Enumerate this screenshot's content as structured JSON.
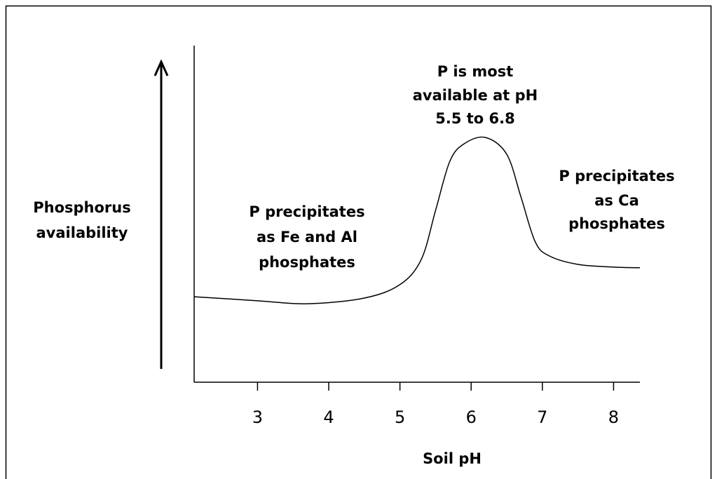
{
  "chart_data": {
    "type": "line",
    "x_label": "Soil pH",
    "y_label": [
      "Phosphorus",
      "availability"
    ],
    "annotations": [
      {
        "lines": [
          "P precipitates",
          "as Fe and Al",
          "phosphates"
        ]
      },
      {
        "lines": [
          "P is most",
          "available at pH",
          "5.5 to 6.8"
        ]
      },
      {
        "lines": [
          "P precipitates",
          "as Ca",
          "phosphates"
        ]
      }
    ],
    "x": [
      2.11,
      3.0,
      3.7,
      4.5,
      5.0,
      5.3,
      5.5,
      5.7,
      5.9,
      6.2,
      6.5,
      6.7,
      6.9,
      7.1,
      7.5,
      8.0,
      8.37
    ],
    "series": [
      {
        "color": "#000000",
        "values": [
          25.4,
          24.2,
          23.3,
          25.0,
          29.0,
          36.5,
          51.0,
          65.6,
          70.8,
          72.7,
          67.7,
          55.0,
          41.7,
          37.5,
          35.0,
          34.2,
          34.0
        ]
      }
    ],
    "xlim": [
      2.11,
      8.37
    ],
    "xticks": [
      3,
      4,
      5,
      6,
      7,
      8
    ],
    "ylim": [
      0,
      100
    ],
    "grid": false
  }
}
